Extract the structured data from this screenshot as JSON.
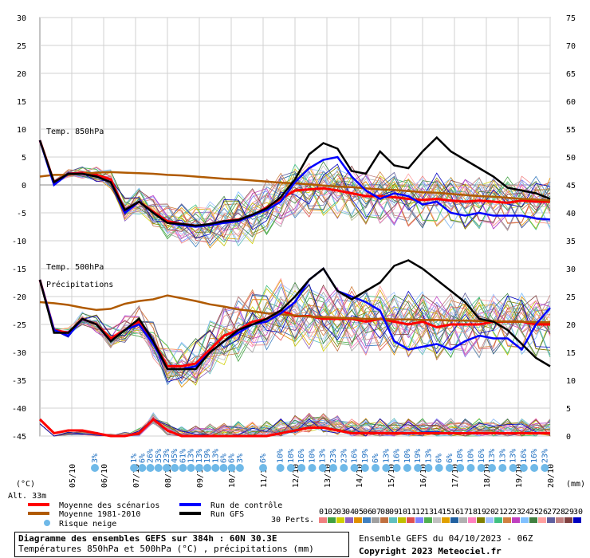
{
  "chart_data": {
    "type": "line",
    "title": "Diagramme des ensembles GEFS sur 384h : 60N 30.3E",
    "subtitle": "Températures 850hPa et 500hPa (°C) , précipitations (mm)",
    "left_axis": {
      "label": "(°C)",
      "ticks": [
        30,
        25,
        20,
        15,
        10,
        5,
        0,
        -5,
        -10,
        -15,
        -20,
        -25,
        -30,
        -35,
        -40,
        -45
      ]
    },
    "right_axis": {
      "label": "(mm)",
      "ticks": [
        75,
        70,
        65,
        60,
        55,
        50,
        45,
        40,
        35,
        30,
        25,
        20,
        15,
        10,
        5,
        0
      ]
    },
    "altitude": "Alt. 33m",
    "panel_labels": [
      "Temp. 850hPa",
      "Temp. 500hPa",
      "Précipitations"
    ],
    "x_dates": [
      "05/10",
      "06/10",
      "07/10",
      "08/10",
      "09/10",
      "10/10",
      "11/10",
      "12/10",
      "13/10",
      "14/10",
      "15/10",
      "16/10",
      "17/10",
      "18/10",
      "19/10",
      "20/10"
    ],
    "snow_risk": [
      "3%",
      "",
      "",
      "",
      "",
      "",
      "",
      "",
      "",
      "",
      "",
      "",
      "",
      "",
      "",
      "3%",
      "",
      "",
      "",
      "",
      "",
      "",
      "",
      "",
      "",
      "",
      "",
      "",
      "",
      "",
      "",
      "",
      "",
      "",
      "",
      "",
      "",
      "",
      "",
      "",
      "",
      "",
      "",
      "",
      "",
      "",
      "",
      ""
    ],
    "snow_risk_labels": [
      "3%",
      "1%",
      "6%",
      "26%",
      "35%",
      "23%",
      "45%",
      "61%",
      "13%",
      "13%",
      "19%",
      "13%",
      "6%",
      "6%",
      "3%",
      "6%",
      "10%",
      "10%",
      "16%",
      "10%",
      "13%",
      "23%",
      "23%",
      "16%",
      "19%",
      "6%",
      "13%",
      "16%",
      "10%",
      "19%",
      "13%",
      "6%",
      "6%",
      "10%",
      "10%",
      "16%",
      "13%",
      "13%",
      "13%",
      "16%",
      "16%",
      "23%"
    ],
    "series": [
      {
        "name": "Moyenne des scénarios",
        "color": "#ff0000",
        "t850": [
          8,
          0.5,
          2,
          2.2,
          1.8,
          1,
          -4.5,
          -3,
          -4.8,
          -6.5,
          -7,
          -7.3,
          -7.2,
          -6.5,
          -6.2,
          -5.5,
          -4,
          -2.5,
          -1,
          -0.8,
          -0.6,
          -1,
          -1.5,
          -2,
          -2,
          -2.2,
          -2.5,
          -2.7,
          -2.5,
          -2.8,
          -3,
          -2.8,
          -3,
          -3.2,
          -2.8,
          -3,
          -3
        ],
        "t500": [
          -17,
          -26,
          -26.5,
          -24,
          -25,
          -27.5,
          -26,
          -24.5,
          -28,
          -32.5,
          -32.5,
          -32,
          -29.5,
          -27,
          -26,
          -24.5,
          -24,
          -22.5,
          -23.5,
          -23.5,
          -24,
          -24,
          -24,
          -24.5,
          -24,
          -24.5,
          -25,
          -24.5,
          -25.5,
          -25,
          -25,
          -25,
          -24.5,
          -24.5,
          -24.5,
          -25,
          -25
        ],
        "prec": [
          3,
          0.5,
          1,
          1,
          0.5,
          0,
          0,
          0.5,
          3,
          1,
          0,
          0,
          0,
          0,
          0,
          0,
          0,
          0.5,
          1,
          1.5,
          1.5,
          1,
          0.5,
          0.5,
          0.5,
          0.5,
          0.5,
          0.5,
          0.5,
          0.5,
          0.5,
          0.5,
          0.5,
          0.5,
          0.5,
          0.5,
          0.5
        ]
      },
      {
        "name": "Moyenne 1981-2010",
        "color": "#b05a00",
        "t850": [
          1.5,
          1.8,
          1.8,
          2,
          2.2,
          2.3,
          2.2,
          2.1,
          2,
          1.8,
          1.7,
          1.5,
          1.3,
          1.1,
          1,
          0.8,
          0.6,
          0.4,
          0.3,
          0.1,
          -0.1,
          -0.3,
          -0.4,
          -0.6,
          -0.8,
          -0.9,
          -1.1,
          -1.3,
          -1.4,
          -1.6,
          -1.8,
          -2,
          -2.1,
          -2.3,
          -2.5,
          -2.6,
          -2.8
        ],
        "t500": [
          -21,
          -21.2,
          -21.5,
          -22,
          -22.4,
          -22.2,
          -21.3,
          -20.8,
          -20.5,
          -19.8,
          -20.3,
          -20.8,
          -21.4,
          -21.8,
          -22.3,
          -22.6,
          -23,
          -23.2,
          -23.4,
          -23.6,
          -23.7,
          -23.8,
          -23.9,
          -24,
          -24,
          -24.1,
          -24.1,
          -24.2,
          -24.2,
          -24.3,
          -24.3,
          -24.4,
          -24.4,
          -24.5,
          -24.5,
          -24.6,
          -24.6
        ]
      },
      {
        "name": "Run de contrôle",
        "color": "#0000ff",
        "t850": [
          8,
          0,
          2,
          2,
          1.5,
          0.5,
          -5,
          -3,
          -5,
          -6.8,
          -7.2,
          -7.5,
          -7.2,
          -6.8,
          -6.5,
          -5.5,
          -4.5,
          -3,
          0.5,
          3,
          4.5,
          5,
          1.5,
          -1,
          -2.5,
          -1.5,
          -2,
          -3.5,
          -3,
          -5,
          -5.5,
          -5,
          -5.5,
          -5.5,
          -5.5,
          -6,
          -6.2
        ],
        "t500": [
          -17,
          -26,
          -27,
          -24,
          -25,
          -28,
          -26,
          -25,
          -28.5,
          -33,
          -33,
          -32.5,
          -30,
          -28,
          -26.5,
          -25,
          -24.5,
          -23,
          -21,
          -17,
          -15,
          -19,
          -20,
          -21,
          -22.5,
          -28,
          -29.5,
          -29,
          -28.5,
          -29.5,
          -28,
          -27,
          -27.5,
          -27.5,
          -29.5,
          -25,
          -22
        ]
      },
      {
        "name": "Run GFS",
        "color": "#000000",
        "t850": [
          8,
          0.5,
          2,
          2,
          1.5,
          0.5,
          -4.5,
          -3,
          -5,
          -6.8,
          -7,
          -7.3,
          -7,
          -6.5,
          -6.3,
          -5.3,
          -4.2,
          -2.2,
          1,
          5.5,
          7.5,
          6.5,
          2.5,
          2,
          6,
          3.5,
          3,
          6,
          8.5,
          6,
          4.5,
          3,
          1.5,
          -0.5,
          -1,
          -1.5,
          -2.5
        ],
        "t500": [
          -17,
          -26.5,
          -26.5,
          -24,
          -25,
          -28,
          -26,
          -24,
          -28,
          -33,
          -33,
          -33,
          -30,
          -28,
          -26,
          -25,
          -24,
          -22.5,
          -20,
          -17,
          -15,
          -19,
          -20.5,
          -19,
          -17.5,
          -14.5,
          -13.5,
          -15,
          -17,
          -19,
          -21,
          -24,
          -24.5,
          -26,
          -28.5,
          -31,
          -32.5
        ]
      }
    ],
    "legend": [
      {
        "label": "Moyenne des scénarios",
        "color": "#ff0000"
      },
      {
        "label": "Moyenne 1981-2010",
        "color": "#b05a00"
      },
      {
        "label": "Run de contrôle",
        "color": "#0000ff"
      },
      {
        "label": "Run GFS",
        "color": "#000000"
      },
      {
        "label": "Risque neige",
        "color": "#6fb9e8"
      }
    ],
    "perturbations": {
      "label": "30 Perts.",
      "ids": [
        "01",
        "02",
        "03",
        "04",
        "05",
        "06",
        "07",
        "08",
        "09",
        "10",
        "11",
        "12",
        "13",
        "14",
        "15",
        "16",
        "17",
        "18",
        "19",
        "20",
        "21",
        "22",
        "23",
        "24",
        "25",
        "26",
        "27",
        "28",
        "29",
        "30"
      ],
      "colors": [
        "#f08080",
        "#40a040",
        "#d0d000",
        "#9060c0",
        "#e09000",
        "#4080c0",
        "#a0a0a0",
        "#c07040",
        "#60c0c0",
        "#c0c000",
        "#e05050",
        "#8080ff",
        "#50b050",
        "#c0c0c0",
        "#e0a000",
        "#2060a0",
        "#b0b0b0",
        "#ff80c0",
        "#808000",
        "#a0c0ff",
        "#40c080",
        "#d08040",
        "#c040c0",
        "#80c0ff",
        "#408040",
        "#ffa0a0",
        "#6060a0",
        "#c08080",
        "#804040",
        "#0000c0"
      ]
    }
  },
  "footer": {
    "ensemble": "Ensemble GEFS du 04/10/2023 - 06Z",
    "copyright": "Copyright 2023 Meteociel.fr"
  }
}
